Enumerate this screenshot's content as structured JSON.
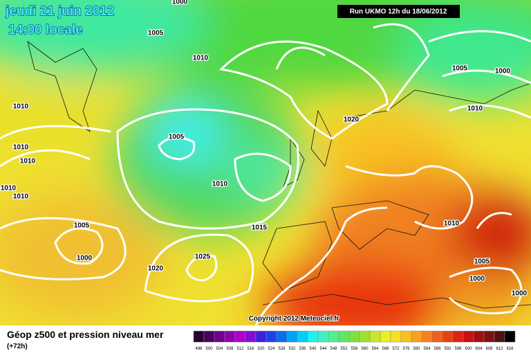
{
  "header": {
    "date": "jeudi 21 juin 2012",
    "time": "14:00 locale",
    "run": "Run UKMO 12h du 18/06/2012"
  },
  "isobar_labels": [
    "1000",
    "1005",
    "1010",
    "1010",
    "1010",
    "1010",
    "1010",
    "1010",
    "1005",
    "1010",
    "1020",
    "1015",
    "1005",
    "1000",
    "1020",
    "1025",
    "1005",
    "1000",
    "1010",
    "1010",
    "1005",
    "1000",
    "1000"
  ],
  "copyright": "Copyright 2012 Meteociel.fr",
  "footer": {
    "title": "Géop z500 et pression niveau mer",
    "lead": "(+72h)"
  },
  "legend": {
    "levels": [
      496,
      500,
      504,
      508,
      512,
      516,
      520,
      524,
      528,
      532,
      536,
      540,
      544,
      548,
      552,
      556,
      560,
      564,
      568,
      572,
      576,
      580,
      584,
      588,
      592,
      596,
      600,
      604,
      608,
      612,
      616
    ],
    "colors": [
      "#2a0030",
      "#4a0060",
      "#700090",
      "#9000b0",
      "#b000c8",
      "#8010d0",
      "#4020e0",
      "#2040f0",
      "#0070f0",
      "#00a0f8",
      "#00d0f8",
      "#20f0f0",
      "#40f0c0",
      "#50f090",
      "#60e860",
      "#80e040",
      "#a0e030",
      "#c8e828",
      "#e8f020",
      "#f8e020",
      "#f8c020",
      "#f8a020",
      "#f88020",
      "#f06018",
      "#e84010",
      "#e02010",
      "#c81010",
      "#a01010",
      "#801010",
      "#501010",
      "#000000"
    ]
  }
}
